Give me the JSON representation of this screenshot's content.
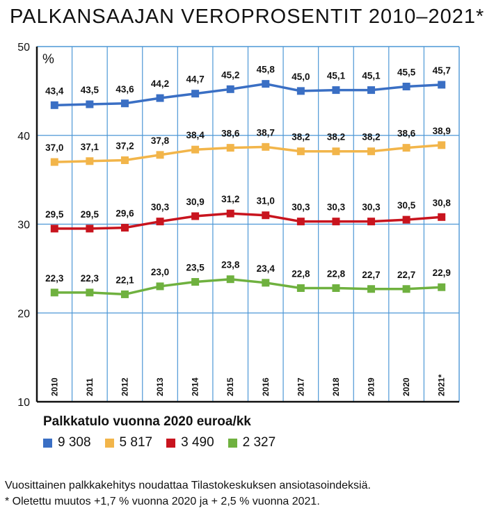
{
  "title": "PALKANSAAJAN VEROPROSENTIT 2010–2021*",
  "chart_data": {
    "type": "line",
    "unit_label": "%",
    "categories": [
      "2010",
      "2011",
      "2012",
      "2013",
      "2014",
      "2015",
      "2016",
      "2017",
      "2018",
      "2019",
      "2020",
      "2021*"
    ],
    "ylim": [
      10,
      50
    ],
    "yticks": [
      10,
      20,
      30,
      40,
      50
    ],
    "grid": true,
    "legend_title": "Palkkatulo vuonna 2020 euroa/kk",
    "series": [
      {
        "name": "9 308",
        "color": "#3a6fc4",
        "values": [
          43.4,
          43.5,
          43.6,
          44.2,
          44.7,
          45.2,
          45.8,
          45.0,
          45.1,
          45.1,
          45.5,
          45.7
        ],
        "labels": [
          "43,4",
          "43,5",
          "43,6",
          "44,2",
          "44,7",
          "45,2",
          "45,8",
          "45,0",
          "45,1",
          "45,1",
          "45,5",
          "45,7"
        ]
      },
      {
        "name": "5 817",
        "color": "#f2b54a",
        "values": [
          37.0,
          37.1,
          37.2,
          37.8,
          38.4,
          38.6,
          38.7,
          38.2,
          38.2,
          38.2,
          38.6,
          38.9
        ],
        "labels": [
          "37,0",
          "37,1",
          "37,2",
          "37,8",
          "38,4",
          "38,6",
          "38,7",
          "38,2",
          "38,2",
          "38,2",
          "38,6",
          "38,9"
        ]
      },
      {
        "name": "3 490",
        "color": "#c8141e",
        "values": [
          29.5,
          29.5,
          29.6,
          30.3,
          30.9,
          31.2,
          31.0,
          30.3,
          30.3,
          30.3,
          30.5,
          30.8
        ],
        "labels": [
          "29,5",
          "29,5",
          "29,6",
          "30,3",
          "30,9",
          "31,2",
          "31,0",
          "30,3",
          "30,3",
          "30,3",
          "30,5",
          "30,8"
        ]
      },
      {
        "name": "2 327",
        "color": "#6fb13f",
        "values": [
          22.3,
          22.3,
          22.1,
          23.0,
          23.5,
          23.8,
          23.4,
          22.8,
          22.8,
          22.7,
          22.7,
          22.9
        ],
        "labels": [
          "22,3",
          "22,3",
          "22,1",
          "23,0",
          "23,5",
          "23,8",
          "23,4",
          "22,8",
          "22,8",
          "22,7",
          "22,7",
          "22,9"
        ]
      }
    ]
  },
  "footnotes": [
    "Vuosittainen palkkakehitys noudattaa Tilastokeskuksen ansiotasoindeksiä.",
    "* Oletettu muutos +1,7 % vuonna 2020 ja + 2,5 % vuonna 2021."
  ]
}
